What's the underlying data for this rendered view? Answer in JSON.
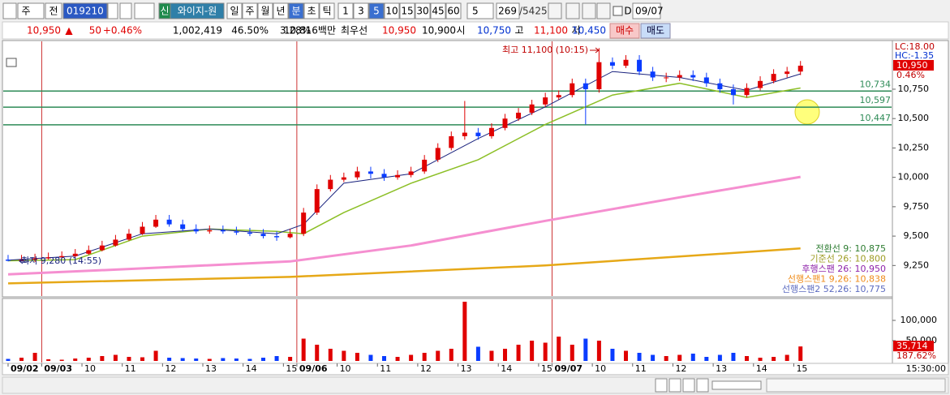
{
  "toolbar": {
    "market": "주",
    "prev": "전",
    "code": "019210",
    "badge": "신",
    "name": "와이지-원",
    "periods": [
      "일",
      "주",
      "월",
      "년",
      "분",
      "초",
      "틱"
    ],
    "intervals": [
      "1",
      "3",
      "5",
      "10",
      "15",
      "30",
      "45",
      "60"
    ],
    "interval_select": "5",
    "count": "269",
    "total": "/5425",
    "date_check": "D",
    "date": "09/07"
  },
  "quote": [
    {
      "text": "10,950",
      "color": "#e00000"
    },
    {
      "text": "▲",
      "color": "#e00000"
    },
    {
      "text": "50",
      "color": "#e00000"
    },
    {
      "text": "+0.46%",
      "color": "#e00000"
    },
    {
      "text": "1,002,419",
      "color": "#000000"
    },
    {
      "text": "46.50%",
      "color": "#000000"
    },
    {
      "text": "3.28%",
      "color": "#000000"
    },
    {
      "text": "10,816백만",
      "color": "#000000"
    },
    {
      "text": "최우선",
      "color": "#000000"
    },
    {
      "text": "10,950",
      "color": "#e00000"
    },
    {
      "text": "10,900",
      "color": "#000000"
    },
    {
      "text": "시",
      "color": "#000000"
    },
    {
      "text": "10,750",
      "color": "#0030d0"
    },
    {
      "text": "고",
      "color": "#000000"
    },
    {
      "text": "11,100",
      "color": "#e00000"
    },
    {
      "text": "저",
      "color": "#000000"
    },
    {
      "text": "10,450",
      "color": "#0030d0"
    }
  ],
  "buy": "매수",
  "sell": "매도",
  "clock": "15:30:00",
  "chart_data": {
    "type": "candlestick",
    "xlim": [
      -0.3,
      59.5
    ],
    "ylim": [
      8990,
      11150
    ],
    "yticks": [
      {
        "value": 9250,
        "label": "9,250"
      },
      {
        "value": 9500,
        "label": "9,500"
      },
      {
        "value": 9750,
        "label": "9,750"
      },
      {
        "value": 10000,
        "label": "10,000"
      },
      {
        "value": 10250,
        "label": "10,250"
      },
      {
        "value": 10500,
        "label": "10,500"
      },
      {
        "value": 10750,
        "label": "10,750"
      }
    ],
    "xticks": [
      {
        "value": 0,
        "label": "09/02"
      },
      {
        "value": 2.5,
        "label": "09/03"
      },
      {
        "value": 5.5,
        "label": "10"
      },
      {
        "value": 8.5,
        "label": "11"
      },
      {
        "value": 11.5,
        "label": "12"
      },
      {
        "value": 14.5,
        "label": "13"
      },
      {
        "value": 17.5,
        "label": "14"
      },
      {
        "value": 20.5,
        "label": "15"
      },
      {
        "value": 21.5,
        "label": "09/06"
      },
      {
        "value": 24.5,
        "label": "10"
      },
      {
        "value": 27.5,
        "label": "11"
      },
      {
        "value": 30.5,
        "label": "12"
      },
      {
        "value": 33.5,
        "label": "13"
      },
      {
        "value": 36.5,
        "label": "14"
      },
      {
        "value": 39.5,
        "label": "15"
      },
      {
        "value": 40.5,
        "label": "09/07"
      },
      {
        "value": 43.5,
        "label": "10"
      },
      {
        "value": 46.5,
        "label": "11"
      },
      {
        "value": 49.5,
        "label": "12"
      },
      {
        "value": 52.5,
        "label": "13"
      },
      {
        "value": 55.5,
        "label": "14"
      },
      {
        "value": 58.5,
        "label": "15"
      }
    ],
    "up_color": "#e00000",
    "down_color": "#0a3cff",
    "candles": {
      "open": [
        9300,
        9290,
        9300,
        9310,
        9320,
        9330,
        9350,
        9380,
        9420,
        9470,
        9520,
        9580,
        9640,
        9600,
        9560,
        9540,
        9550,
        9540,
        9530,
        9520,
        9500,
        9490,
        9520,
        9700,
        9900,
        9980,
        10000,
        10050,
        10030,
        10000,
        10020,
        10050,
        10150,
        10250,
        10350,
        10380,
        10350,
        10420,
        10500,
        10550,
        10620,
        10680,
        10700,
        10800,
        10750,
        10980,
        10950,
        11000,
        10900,
        10850,
        10850,
        10870,
        10850,
        10800,
        10750,
        10700,
        10760,
        10820,
        10880,
        10900
      ],
      "high": [
        9340,
        9340,
        9350,
        9360,
        9370,
        9390,
        9420,
        9460,
        9510,
        9560,
        9620,
        9680,
        9680,
        9640,
        9600,
        9590,
        9590,
        9580,
        9570,
        9560,
        9540,
        9560,
        9740,
        9940,
        10020,
        10040,
        10090,
        10090,
        10070,
        10060,
        10090,
        10190,
        10290,
        10390,
        10650,
        10420,
        10460,
        10540,
        10590,
        10660,
        10720,
        10740,
        10840,
        10840,
        11100,
        11020,
        11040,
        11040,
        10940,
        10890,
        10910,
        10910,
        10890,
        10840,
        10790,
        10800,
        10860,
        10920,
        10940,
        10990
      ],
      "low": [
        9285,
        9285,
        9280,
        9300,
        9310,
        9320,
        9340,
        9370,
        9410,
        9460,
        9510,
        9570,
        9580,
        9540,
        9520,
        9520,
        9520,
        9510,
        9500,
        9480,
        9460,
        9480,
        9500,
        9680,
        9880,
        9960,
        9980,
        9990,
        9970,
        9980,
        10000,
        10030,
        10130,
        10230,
        10320,
        10320,
        10330,
        10400,
        10480,
        10530,
        10600,
        10660,
        10680,
        10450,
        10720,
        10920,
        10930,
        10870,
        10820,
        10810,
        10820,
        10820,
        10770,
        10720,
        10620,
        10680,
        10740,
        10800,
        10850,
        10870
      ],
      "close": [
        9290,
        9300,
        9310,
        9320,
        9330,
        9350,
        9380,
        9420,
        9470,
        9520,
        9580,
        9640,
        9600,
        9560,
        9540,
        9550,
        9540,
        9530,
        9520,
        9500,
        9490,
        9520,
        9700,
        9900,
        9980,
        10000,
        10050,
        10030,
        10000,
        10020,
        10050,
        10150,
        10250,
        10350,
        10380,
        10350,
        10420,
        10500,
        10550,
        10620,
        10680,
        10700,
        10800,
        10750,
        10980,
        10950,
        11000,
        10900,
        10850,
        10850,
        10870,
        10850,
        10800,
        10750,
        10700,
        10760,
        10820,
        10880,
        10900,
        10950
      ]
    },
    "lines": [
      {
        "color": "#f58fd0",
        "width": 3,
        "x": [
          0,
          10,
          21,
          30,
          40,
          50,
          59
        ],
        "values": [
          9174,
          9225,
          9285,
          9420,
          9630,
          9830,
          10004
        ]
      },
      {
        "color": "#e6a817",
        "width": 2.5,
        "x": [
          0,
          21,
          40,
          59
        ],
        "values": [
          9098,
          9153,
          9250,
          9395
        ]
      },
      {
        "color": "#8cbf26",
        "width": 1.5,
        "x": [
          0,
          5,
          10,
          15,
          20,
          22,
          25,
          30,
          35,
          40,
          45,
          50,
          55,
          59
        ],
        "values": [
          9290,
          9300,
          9500,
          9560,
          9540,
          9520,
          9700,
          9950,
          10150,
          10450,
          10700,
          10800,
          10680,
          10760
        ]
      },
      {
        "color": "#1a237e",
        "width": 1,
        "x": [
          0,
          5,
          10,
          15,
          20,
          22,
          25,
          30,
          35,
          40,
          45,
          50,
          55,
          59
        ],
        "values": [
          9295,
          9330,
          9520,
          9560,
          9520,
          9600,
          9950,
          10030,
          10330,
          10600,
          10900,
          10850,
          10740,
          10880
        ]
      }
    ],
    "levels": {
      "color": "#2e8b57",
      "items": [
        {
          "value": 10734,
          "label": "10,734"
        },
        {
          "value": 10597,
          "label": "10,597"
        },
        {
          "value": 10447,
          "label": "10,447"
        }
      ]
    },
    "high_note": "최고 11,100 (10:15)",
    "low_note": "최저 9,280 (14:55)",
    "lc": "LC:18.00",
    "hc": "HC:-1.35",
    "last": {
      "value": 10950,
      "label": "10,950"
    },
    "last_pct": "0.46%",
    "legend": [
      {
        "text": "전환선 9: 10,875",
        "color": "#2e7d32"
      },
      {
        "text": "기준선 26: 10,800",
        "color": "#9e9d24"
      },
      {
        "text": "후행스팬 26: 10,950",
        "color": "#8e24aa"
      },
      {
        "text": "선행스팬1 9,26: 10,838",
        "color": "#ef8c1a"
      },
      {
        "text": "선행스팬2 52,26: 10,775",
        "color": "#5c6bc0"
      }
    ],
    "volume": {
      "ylim": [
        0,
        150000
      ],
      "yticks": [
        {
          "value": 100000,
          "label": "100,000"
        },
        {
          "value": 50000,
          "label": "50,000"
        }
      ],
      "values": [
        5000,
        8000,
        20000,
        4000,
        3000,
        6000,
        8000,
        12000,
        15000,
        10000,
        9000,
        25000,
        8000,
        7000,
        6000,
        5000,
        7000,
        6000,
        5000,
        8000,
        12000,
        10000,
        55000,
        40000,
        30000,
        25000,
        20000,
        15000,
        12000,
        10000,
        15000,
        20000,
        25000,
        30000,
        146000,
        35000,
        25000,
        30000,
        40000,
        50000,
        45000,
        60000,
        40000,
        55000,
        50000,
        30000,
        25000,
        20000,
        15000,
        12000,
        15000,
        18000,
        10000,
        15000,
        20000,
        12000,
        8000,
        10000,
        15000,
        35714
      ],
      "last": {
        "value": 35714,
        "label": "35,714"
      },
      "last_pct": "187.62%"
    }
  }
}
